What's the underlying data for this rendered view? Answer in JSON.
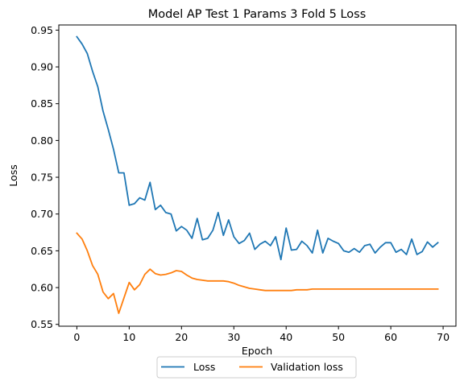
{
  "chart_data": {
    "type": "line",
    "title": "Model AP Test 1 Params 3 Fold 5 Loss",
    "xlabel": "Epoch",
    "ylabel": "Loss",
    "xlim": [
      -3.45,
      72.45
    ],
    "ylim": [
      0.5475,
      0.957
    ],
    "xticks": [
      0,
      10,
      20,
      30,
      40,
      50,
      60,
      70
    ],
    "yticks": [
      0.55,
      0.6,
      0.65,
      0.7,
      0.75,
      0.8,
      0.85,
      0.9,
      0.95
    ],
    "ytick_labels": [
      "0.55",
      "0.60",
      "0.65",
      "0.70",
      "0.75",
      "0.80",
      "0.85",
      "0.90",
      "0.95"
    ],
    "legend_position": "below plot, centered",
    "series": [
      {
        "name": "Loss",
        "color": "#1f77b4",
        "x": [
          0,
          1,
          2,
          3,
          4,
          5,
          6,
          7,
          8,
          9,
          10,
          11,
          12,
          13,
          14,
          15,
          16,
          17,
          18,
          19,
          20,
          21,
          22,
          23,
          24,
          25,
          26,
          27,
          28,
          29,
          30,
          31,
          32,
          33,
          34,
          35,
          36,
          37,
          38,
          39,
          40,
          41,
          42,
          43,
          44,
          45,
          46,
          47,
          48,
          49,
          50,
          51,
          52,
          53,
          54,
          55,
          56,
          57,
          58,
          59,
          60,
          61,
          62,
          63,
          64,
          65,
          66,
          67,
          68,
          69
        ],
        "values": [
          0.941,
          0.931,
          0.918,
          0.894,
          0.873,
          0.84,
          0.815,
          0.788,
          0.756,
          0.756,
          0.712,
          0.714,
          0.722,
          0.719,
          0.743,
          0.706,
          0.712,
          0.702,
          0.7,
          0.677,
          0.683,
          0.678,
          0.667,
          0.694,
          0.665,
          0.667,
          0.678,
          0.702,
          0.671,
          0.692,
          0.669,
          0.66,
          0.664,
          0.674,
          0.652,
          0.659,
          0.663,
          0.657,
          0.669,
          0.638,
          0.681,
          0.651,
          0.652,
          0.663,
          0.657,
          0.647,
          0.678,
          0.647,
          0.667,
          0.663,
          0.66,
          0.65,
          0.648,
          0.653,
          0.648,
          0.657,
          0.659,
          0.647,
          0.655,
          0.661,
          0.661,
          0.648,
          0.652,
          0.645,
          0.666,
          0.645,
          0.649,
          0.662,
          0.655,
          0.661
        ]
      },
      {
        "name": "Validation loss",
        "color": "#ff7f0e",
        "x": [
          0,
          1,
          2,
          3,
          4,
          5,
          6,
          7,
          8,
          9,
          10,
          11,
          12,
          13,
          14,
          15,
          16,
          17,
          18,
          19,
          20,
          21,
          22,
          23,
          24,
          25,
          26,
          27,
          28,
          29,
          30,
          31,
          32,
          33,
          34,
          35,
          36,
          37,
          38,
          39,
          40,
          41,
          42,
          43,
          44,
          45,
          46,
          47,
          48,
          49,
          50,
          51,
          52,
          53,
          54,
          55,
          56,
          57,
          58,
          59,
          60,
          61,
          62,
          63,
          64,
          65,
          66,
          67,
          68,
          69
        ],
        "values": [
          0.674,
          0.666,
          0.65,
          0.63,
          0.618,
          0.594,
          0.585,
          0.592,
          0.565,
          0.586,
          0.607,
          0.597,
          0.604,
          0.618,
          0.625,
          0.619,
          0.617,
          0.618,
          0.62,
          0.623,
          0.622,
          0.617,
          0.613,
          0.611,
          0.61,
          0.609,
          0.609,
          0.609,
          0.609,
          0.608,
          0.606,
          0.603,
          0.601,
          0.599,
          0.598,
          0.597,
          0.596,
          0.596,
          0.596,
          0.596,
          0.596,
          0.596,
          0.597,
          0.597,
          0.597,
          0.598,
          0.598,
          0.598,
          0.598,
          0.598,
          0.598,
          0.598,
          0.598,
          0.598,
          0.598,
          0.598,
          0.598,
          0.598,
          0.598,
          0.598,
          0.598,
          0.598,
          0.598,
          0.598,
          0.598,
          0.598,
          0.598,
          0.598,
          0.598,
          0.598
        ]
      }
    ]
  }
}
